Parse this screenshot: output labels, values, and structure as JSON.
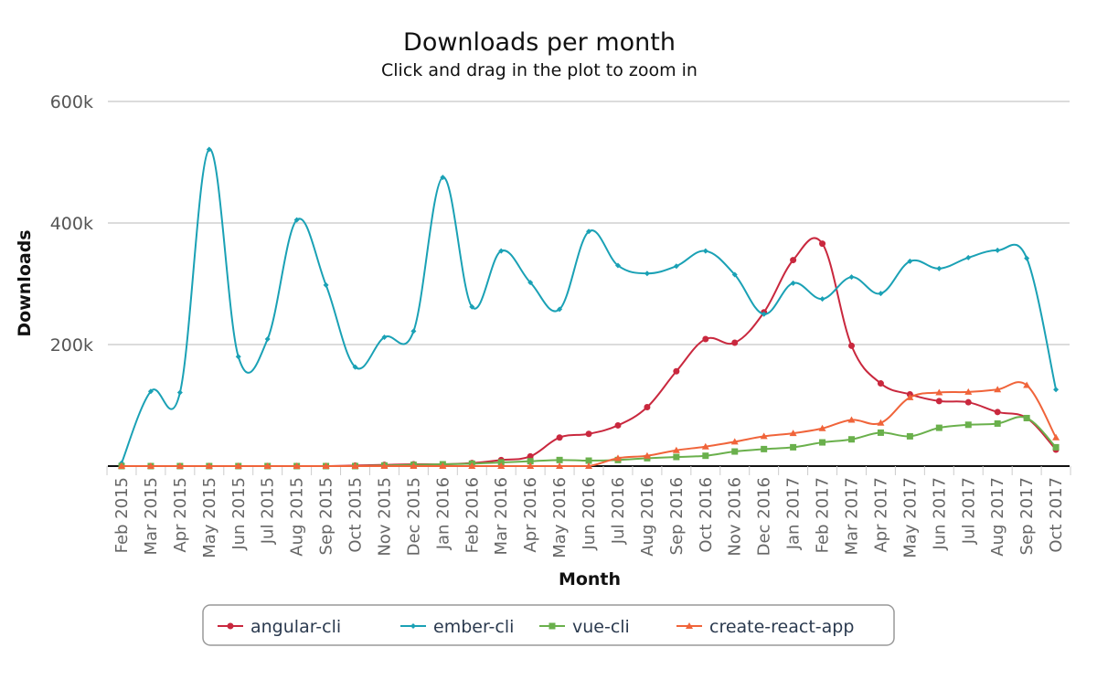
{
  "chart_data": {
    "type": "line",
    "title": "Downloads per month",
    "subtitle": "Click and drag in the plot to zoom in",
    "xlabel": "Month",
    "ylabel": "Downloads",
    "ylim": [
      0,
      600000
    ],
    "yticks": [
      {
        "value": 200000,
        "label": "200k"
      },
      {
        "value": 400000,
        "label": "400k"
      },
      {
        "value": 600000,
        "label": "600k"
      }
    ],
    "grid": true,
    "legend_position": "bottom",
    "categories": [
      "Feb 2015",
      "Mar 2015",
      "Apr 2015",
      "May 2015",
      "Jun 2015",
      "Jul 2015",
      "Aug 2015",
      "Sep 2015",
      "Oct 2015",
      "Nov 2015",
      "Dec 2015",
      "Jan 2016",
      "Feb 2016",
      "Mar 2016",
      "Apr 2016",
      "May 2016",
      "Jun 2016",
      "Jul 2016",
      "Aug 2016",
      "Sep 2016",
      "Oct 2016",
      "Nov 2016",
      "Dec 2016",
      "Jan 2017",
      "Feb 2017",
      "Mar 2017",
      "Apr 2017",
      "May 2017",
      "Jun 2017",
      "Jul 2017",
      "Aug 2017",
      "Sep 2017",
      "Oct 2017"
    ],
    "series": [
      {
        "name": "angular-cli",
        "color": "#c9283e",
        "marker": "circle",
        "values": [
          0,
          0,
          0,
          0,
          0,
          0,
          0,
          0,
          1000,
          2000,
          3000,
          3000,
          5000,
          10000,
          16000,
          47000,
          53000,
          67000,
          97000,
          156000,
          209000,
          203000,
          253000,
          339000,
          366000,
          198000,
          136000,
          118000,
          107000,
          105000,
          89000,
          79000,
          27000
        ]
      },
      {
        "name": "ember-cli",
        "color": "#1aa1b5",
        "marker": "diamond",
        "values": [
          5000,
          123000,
          121000,
          521000,
          180000,
          209000,
          405000,
          298000,
          163000,
          212000,
          222000,
          475000,
          262000,
          354000,
          302000,
          258000,
          386000,
          330000,
          317000,
          329000,
          354000,
          315000,
          250000,
          301000,
          275000,
          311000,
          284000,
          337000,
          325000,
          343000,
          355000,
          342000,
          126000
        ]
      },
      {
        "name": "vue-cli",
        "color": "#6ab04c",
        "marker": "square",
        "values": [
          0,
          0,
          0,
          0,
          0,
          0,
          0,
          0,
          0,
          1000,
          2000,
          3000,
          4000,
          6000,
          8000,
          10000,
          9000,
          10000,
          13000,
          15000,
          17000,
          24000,
          28000,
          31000,
          39000,
          44000,
          55000,
          49000,
          63000,
          68000,
          70000,
          79000,
          31000
        ]
      },
      {
        "name": "create-react-app",
        "color": "#f0643a",
        "marker": "triangle",
        "values": [
          0,
          0,
          0,
          0,
          0,
          0,
          0,
          0,
          0,
          0,
          0,
          0,
          0,
          0,
          0,
          0,
          0,
          13000,
          17000,
          26000,
          32000,
          40000,
          49000,
          54000,
          62000,
          76000,
          71000,
          113000,
          121000,
          122000,
          126000,
          133000,
          47000
        ]
      }
    ]
  }
}
